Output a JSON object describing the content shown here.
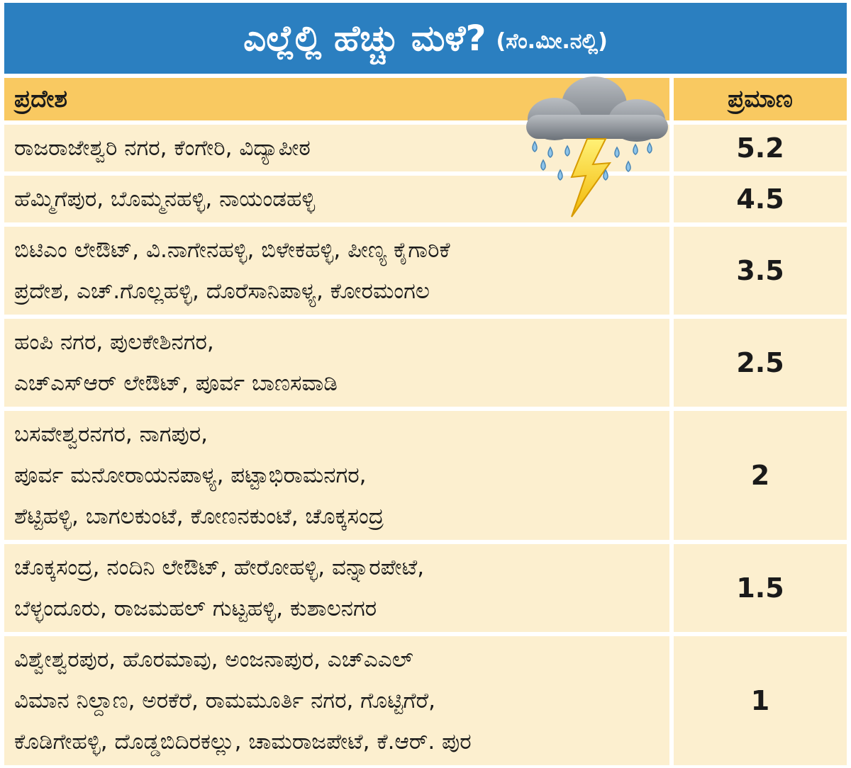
{
  "title": {
    "main": "ಎಲ್ಲೆಲ್ಲಿ ಹೆಚ್ಚು ಮಳೆ?",
    "unit": "(ಸೆಂ.ಮೀ.ನಲ್ಲಿ)"
  },
  "headers": {
    "area": "ಪ್ರದೇಶ",
    "amount": "ಪ್ರಮಾಣ"
  },
  "icon": "rain-cloud-lightning-icon",
  "colors": {
    "title_bg": "#2b7fc0",
    "header_bg": "#f9c961",
    "row_bg": "#fcefcf"
  },
  "chart_data": {
    "type": "table",
    "columns": [
      "ಪ್ರದೇಶ",
      "ಪ್ರಮಾಣ"
    ],
    "rows": [
      {
        "lines": [
          "ರಾಜರಾಜೇಶ್ವರಿ ನಗರ, ಕೆಂಗೇರಿ, ವಿದ್ಯಾಪೀಠ"
        ],
        "value": "5.2"
      },
      {
        "lines": [
          "ಹೆಮ್ಮಿಗೆಪುರ, ಬೊಮ್ಮನಹಳ್ಳಿ, ನಾಯಂಡಹಳ್ಳಿ"
        ],
        "value": "4.5"
      },
      {
        "lines": [
          "ಬಿಟಿಎಂ ಲೇಔಟ್, ವಿ.ನಾಗೇನಹಳ್ಳಿ, ಬಿಳೇಕಹಳ್ಳಿ, ಪೀಣ್ಯ ಕೈಗಾರಿಕೆ",
          "ಪ್ರದೇಶ, ಎಚ್.ಗೊಲ್ಲಹಳ್ಳಿ, ದೊರೆಸಾನಿಪಾಳ್ಯ, ಕೋರಮಂಗಲ"
        ],
        "value": "3.5"
      },
      {
        "lines": [
          "ಹಂಪಿ ನಗರ, ಪುಲಕೇಶಿನಗರ,",
          "ಎಚ್‌ಎಸ್‌ಆರ್ ಲೇಔಟ್, ಪೂರ್ವ ಬಾಣಸವಾಡಿ"
        ],
        "value": "2.5"
      },
      {
        "lines": [
          "ಬಸವೇಶ್ವರನಗರ, ನಾಗಪುರ,",
          "ಪೂರ್ವ ಮನೋರಾಯನಪಾಳ್ಯ, ಪಟ್ಟಾಭಿರಾಮನಗರ,",
          "ಶೆಟ್ಟಿಹಳ್ಳಿ, ಬಾಗಲಕುಂಟೆ, ಕೋಣನಕುಂಟೆ, ಚೊಕ್ಕಸಂದ್ರ"
        ],
        "value": "2"
      },
      {
        "lines": [
          "ಚೊಕ್ಕಸಂದ್ರ, ನಂದಿನಿ ಲೇಔಟ್, ಹೇರೋಹಳ್ಳಿ, ವನ್ನಾರಪೇಟೆ,",
          "ಬೆಳ್ಳಂದೂರು, ರಾಜಮಹಲ್ ಗುಟ್ಟಹಳ್ಳಿ, ಕುಶಾಲನಗರ"
        ],
        "value": "1.5"
      },
      {
        "lines": [
          "ವಿಶ್ವೇಶ್ವರಪುರ, ಹೊರಮಾವು, ಅಂಜನಾಪುರ, ಎಚ್‌ಎಎಲ್",
          "ವಿಮಾನ ನಿಲ್ದಾಣ, ಅರಕೆರೆ, ರಾಮಮೂರ್ತಿ ನಗರ, ಗೊಟ್ಟಿಗೆರೆ,",
          "ಕೊಡಿಗೇಹಳ್ಳಿ, ದೊಡ್ಡಬಿದಿರಕಲ್ಲು, ಚಾಮರಾಜಪೇಟೆ, ಕೆ.ಆರ್. ಪುರ"
        ],
        "value": "1"
      }
    ]
  }
}
